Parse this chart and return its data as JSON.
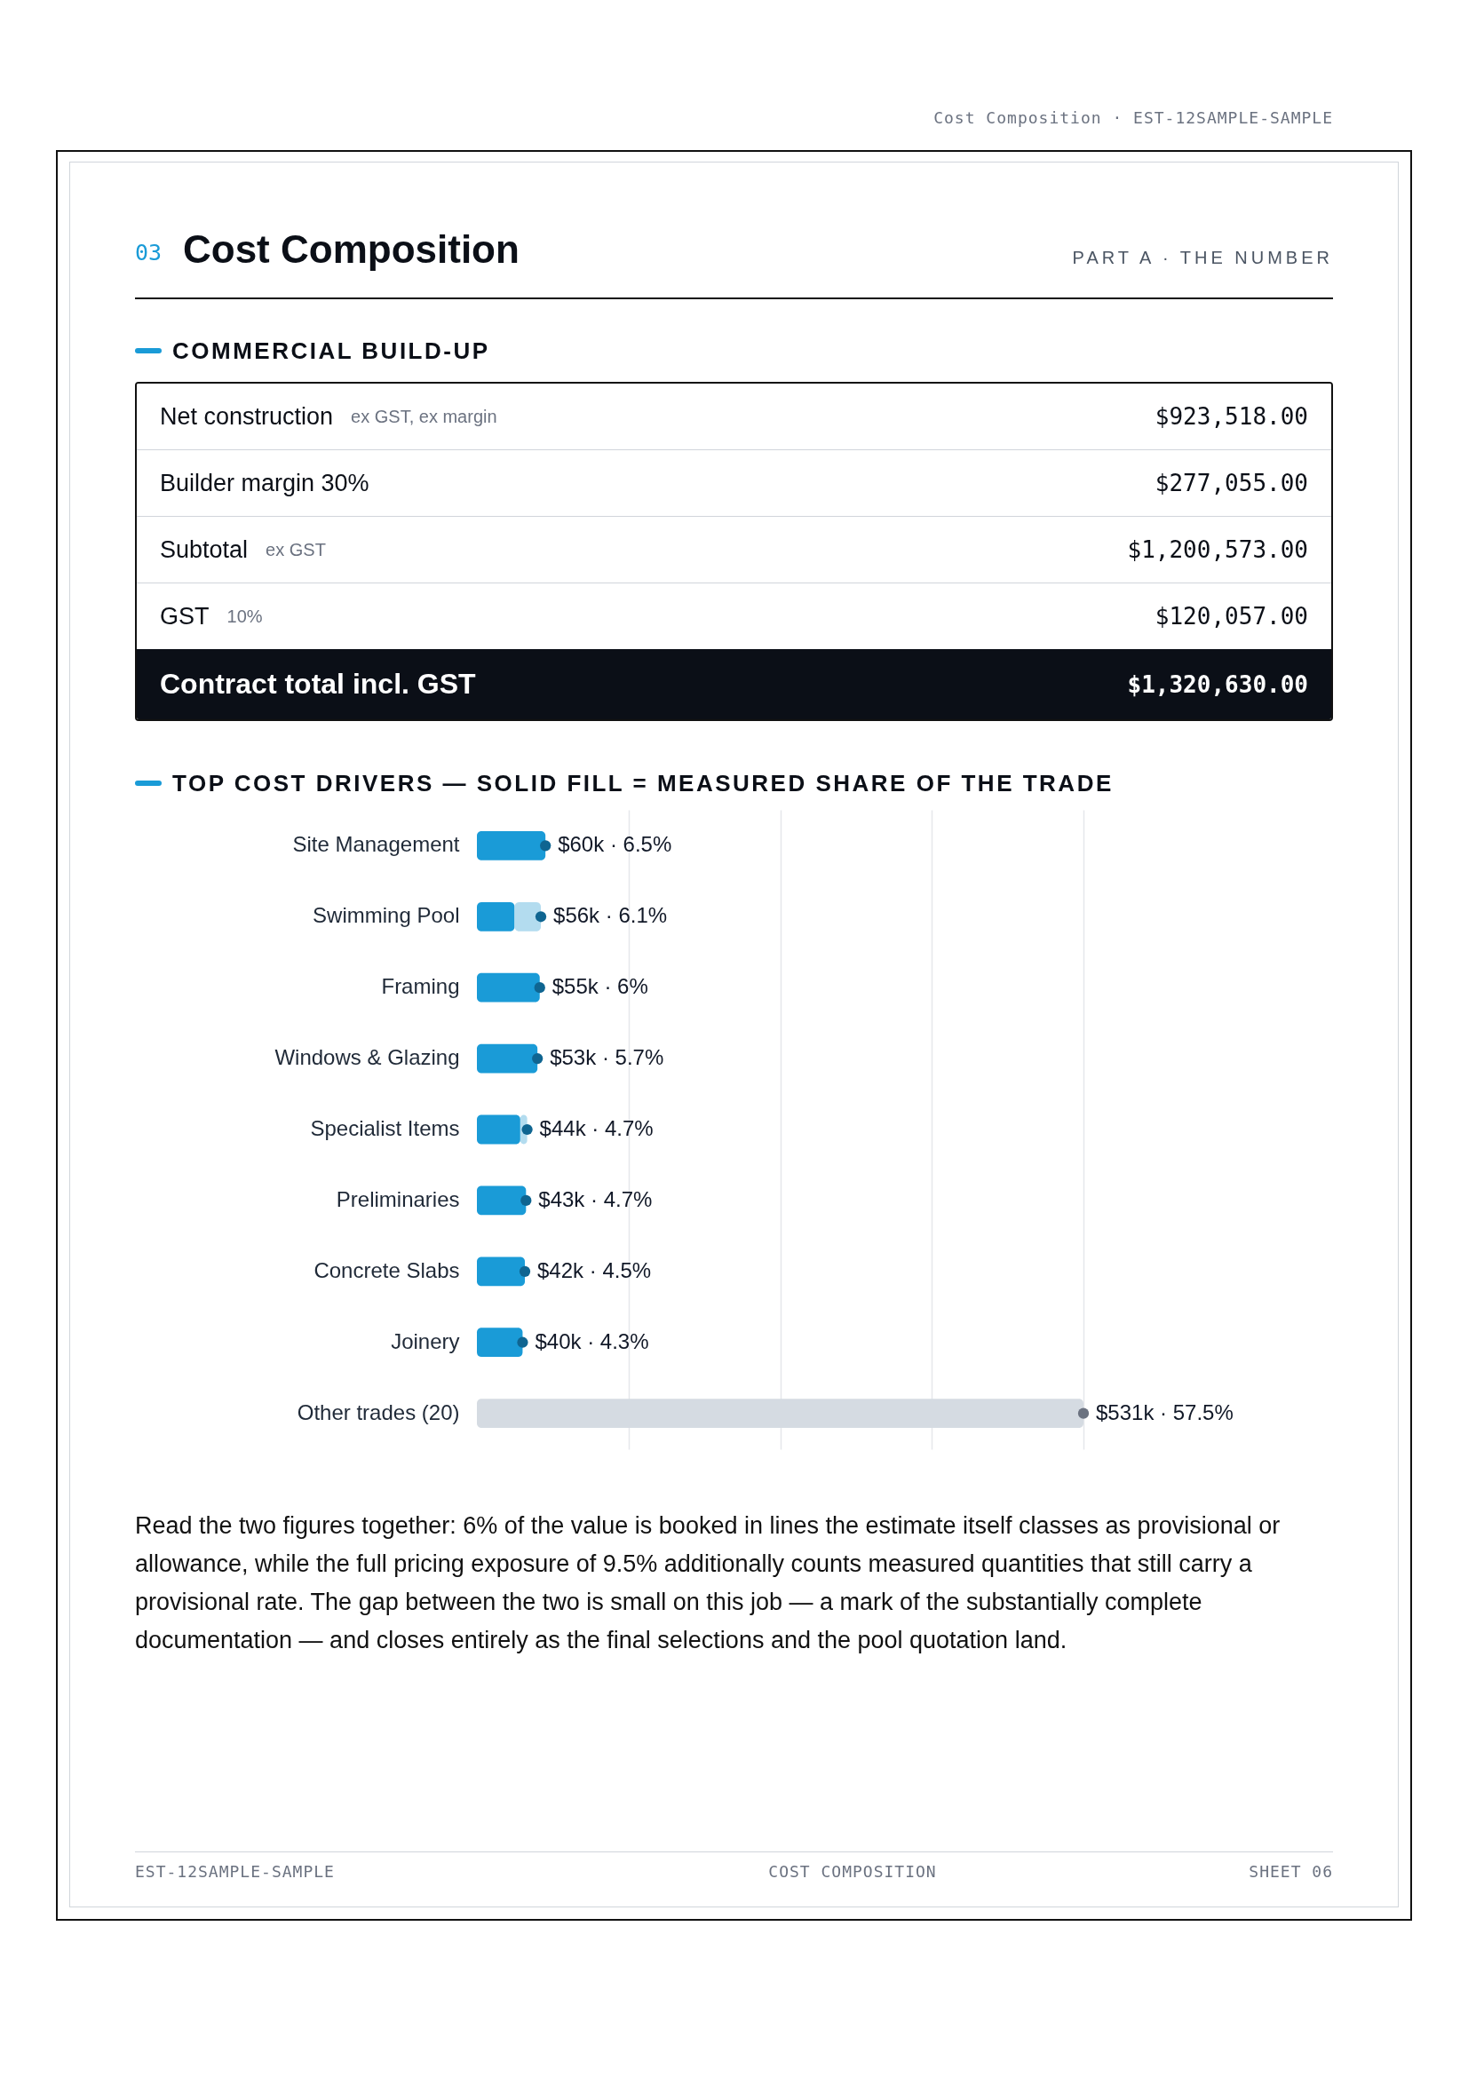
{
  "chart_data": [
    {
      "type": "other",
      "title": "Cost Composition",
      "subtitle": "PART A · THE NUMBER",
      "annotations": [
        "Cost Composition · EST-12SAMPLE-SAMPLE",
        "03",
        "COMMERCIAL BUILD-UP",
        "Net construction",
        "ex GST, ex margin",
        "$923,518.00",
        "Builder margin 30%",
        "$277,055.00",
        "Subtotal",
        "ex GST",
        "$1,200,573.00",
        "GST",
        "10%",
        "$120,057.00",
        "Contract total incl. GST",
        "$1,320,630.00"
      ]
    },
    {
      "type": "bar",
      "orientation": "horizontal",
      "stacked": true,
      "title": "TOP COST DRIVERS — SOLID FILL = MEASURED SHARE OF THE TRADE",
      "categories": [
        "Site Management",
        "Swimming Pool",
        "Framing",
        "Windows & Glazing",
        "Specialist Items",
        "Preliminaries",
        "Concrete Slabs",
        "Joinery",
        "Other trades (20)"
      ],
      "series": [
        {
          "colors": [
            "#1a9bd7",
            "#1a9bd7",
            "#1a9bd7",
            "#1a9bd7",
            "#1a9bd7",
            "#1a9bd7",
            "#1a9bd7",
            "#1a9bd7",
            "#d5dbe2"
          ],
          "values": [
            60000,
            33000,
            55000,
            53000,
            38000,
            43000,
            42000,
            40000,
            531000
          ]
        },
        {
          "color": "#b3dcef",
          "values": [
            null,
            23000,
            null,
            null,
            6000,
            null,
            null,
            null,
            null
          ]
        },
        {
          "type": "scatter",
          "colors": [
            "#0f6591",
            "#0f6591",
            "#0f6591",
            "#0f6591",
            "#0f6591",
            "#0f6591",
            "#0f6591",
            "#0f6591",
            "#6b7280"
          ],
          "values": [
            60000,
            56000,
            55000,
            53000,
            44000,
            43000,
            42000,
            40000,
            531000
          ],
          "value_labels": [
            "$60k · 6.5%",
            "$56k · 6.1%",
            "$55k · 6%",
            "$53k · 5.7%",
            "$44k · 4.7%",
            "$43k · 4.7%",
            "$42k · 4.5%",
            "$40k · 4.3%",
            "$531k · 57.5%"
          ]
        }
      ],
      "marker": "circle",
      "xlim": [
        0,
        531000
      ],
      "xticks": [
        {
          "value": 132750,
          "label": null
        },
        {
          "value": 265500,
          "label": null
        },
        {
          "value": 398250,
          "label": null
        },
        {
          "value": 531000,
          "label": null
        }
      ],
      "grid": "x",
      "tick_labels": "y",
      "annotations": [
        "Read the two figures together: 6% of the value is booked in lines the estimate itself classes as provisional or allowance, while the full pricing exposure of 9.5% additionally counts measured quantities that still carry a provisional rate. The gap between the two is small on this job — a mark of the substantially complete documentation — and closes entirely as the final selections and the pool quotation land.",
        "EST-12SAMPLE-SAMPLE",
        "COST COMPOSITION",
        "SHEET 06"
      ]
    }
  ]
}
